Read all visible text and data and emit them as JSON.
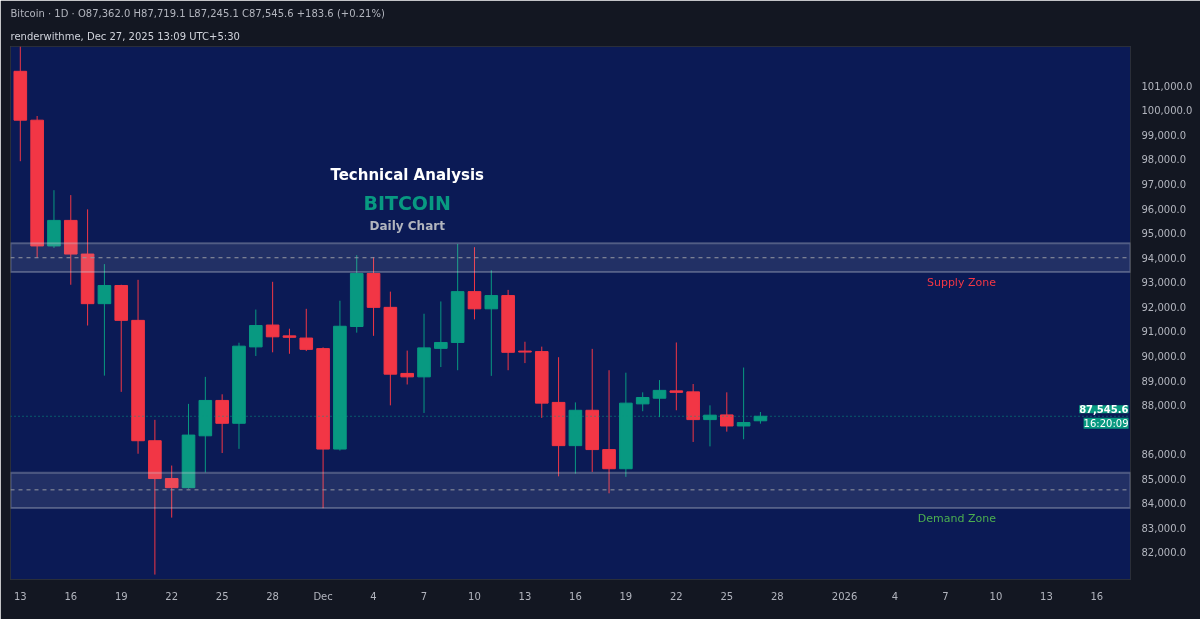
{
  "chart_data": {
    "type": "candlestick",
    "title": "Technical Analysis",
    "subtitle": "BITCOIN",
    "annotations": [
      "renderwithme, Dec 27, 2025 13:09 UTC+5:30",
      "Bitcoin · 1D · O87,362.0 H87,719.1 L87,245.1 C87,545.6 +183.6 (+0.21%)",
      "Daily Chart",
      "16:20:09"
    ],
    "x": [
      "2025-11-13",
      "2025-11-14",
      "2025-11-15",
      "2025-11-16",
      "2025-11-17",
      "2025-11-18",
      "2025-11-19",
      "2025-11-20",
      "2025-11-21",
      "2025-11-22",
      "2025-11-23",
      "2025-11-24",
      "2025-11-25",
      "2025-11-26",
      "2025-11-27",
      "2025-11-28",
      "2025-11-29",
      "2025-11-30",
      "2025-12-01",
      "2025-12-02",
      "2025-12-03",
      "2025-12-04",
      "2025-12-05",
      "2025-12-06",
      "2025-12-07",
      "2025-12-08",
      "2025-12-09",
      "2025-12-10",
      "2025-12-11",
      "2025-12-12",
      "2025-12-13",
      "2025-12-14",
      "2025-12-15",
      "2025-12-16",
      "2025-12-17",
      "2025-12-18",
      "2025-12-19",
      "2025-12-20",
      "2025-12-21",
      "2025-12-22",
      "2025-12-23",
      "2025-12-24",
      "2025-12-25",
      "2025-12-26",
      "2025-12-27"
    ],
    "ohlc": [
      [
        101590,
        102600,
        97930,
        99600
      ],
      [
        99600,
        99770,
        94000,
        94480
      ],
      [
        94480,
        96750,
        94400,
        95520
      ],
      [
        95520,
        96550,
        92900,
        94150
      ],
      [
        94150,
        95970,
        91240,
        92130
      ],
      [
        92130,
        93740,
        89200,
        92870
      ],
      [
        92870,
        92900,
        88540,
        91450
      ],
      [
        91450,
        93100,
        86020,
        86550
      ],
      [
        86550,
        87400,
        81100,
        85010
      ],
      [
        85010,
        85540,
        83420,
        84640
      ],
      [
        84640,
        88050,
        84600,
        86780
      ],
      [
        86750,
        89150,
        85260,
        88190
      ],
      [
        88190,
        88440,
        86050,
        87260
      ],
      [
        87260,
        90540,
        86220,
        90400
      ],
      [
        90370,
        91890,
        90000,
        91240
      ],
      [
        91260,
        93020,
        90150,
        90780
      ],
      [
        90820,
        91110,
        90090,
        90760
      ],
      [
        90730,
        91920,
        90200,
        90270
      ],
      [
        90300,
        90350,
        83800,
        86210
      ],
      [
        86210,
        92250,
        86150,
        91210
      ],
      [
        91200,
        94100,
        90950,
        93360
      ],
      [
        93360,
        94030,
        90820,
        91980
      ],
      [
        91980,
        92620,
        87990,
        89260
      ],
      [
        89290,
        90220,
        88840,
        89150
      ],
      [
        89150,
        91720,
        87680,
        90330
      ],
      [
        90310,
        92220,
        89550,
        90550
      ],
      [
        90550,
        94560,
        89420,
        92620
      ],
      [
        92620,
        94430,
        91490,
        91920
      ],
      [
        91920,
        93490,
        89190,
        92460
      ],
      [
        92460,
        92690,
        89420,
        90150
      ],
      [
        90200,
        90580,
        89710,
        90160
      ],
      [
        90180,
        90380,
        87480,
        88080
      ],
      [
        88110,
        89950,
        85100,
        86350
      ],
      [
        86350,
        88110,
        85210,
        87790
      ],
      [
        87790,
        90290,
        85280,
        86190
      ],
      [
        86190,
        89420,
        84410,
        85410
      ],
      [
        85410,
        89320,
        85080,
        88080
      ],
      [
        88050,
        88520,
        87750,
        88310
      ],
      [
        88280,
        89020,
        87510,
        88600
      ],
      [
        88580,
        90550,
        87790,
        88520
      ],
      [
        88540,
        88860,
        86500,
        87410
      ],
      [
        87410,
        87990,
        86320,
        87590
      ],
      [
        87600,
        88520,
        86920,
        87150
      ],
      [
        87150,
        89530,
        86610,
        87290
      ],
      [
        87362,
        87719,
        87245,
        87545.6
      ]
    ],
    "colors": [
      "#f23645",
      "#f23645",
      "#089981",
      "#f23645",
      "#f23645",
      "#089981",
      "#f23645",
      "#f23645",
      "#f23645",
      "#f23645",
      "#089981",
      "#089981",
      "#f23645",
      "#089981",
      "#089981",
      "#f23645",
      "#f23645",
      "#f23645",
      "#f23645",
      "#089981",
      "#089981",
      "#f23645",
      "#f23645",
      "#f23645",
      "#089981",
      "#089981",
      "#089981",
      "#f23645",
      "#089981",
      "#f23645",
      "#f23645",
      "#f23645",
      "#f23645",
      "#089981",
      "#f23645",
      "#f23645",
      "#089981",
      "#089981",
      "#089981",
      "#f23645",
      "#f23645",
      "#089981",
      "#f23645",
      "#089981",
      "#089981"
    ],
    "xlim": [
      "2025-11-12T10:00",
      "2026-01-18T00:00"
    ],
    "xticks": [
      {
        "value": "2025-11-13",
        "label": "13"
      },
      {
        "value": "2025-11-16",
        "label": "16"
      },
      {
        "value": "2025-11-19",
        "label": "19"
      },
      {
        "value": "2025-11-22",
        "label": "22"
      },
      {
        "value": "2025-11-25",
        "label": "25"
      },
      {
        "value": "2025-11-28",
        "label": "28"
      },
      {
        "value": "2025-12-01",
        "label": "Dec"
      },
      {
        "value": "2025-12-04",
        "label": "4"
      },
      {
        "value": "2025-12-07",
        "label": "7"
      },
      {
        "value": "2025-12-10",
        "label": "10"
      },
      {
        "value": "2025-12-13",
        "label": "13"
      },
      {
        "value": "2025-12-16",
        "label": "16"
      },
      {
        "value": "2025-12-19",
        "label": "19"
      },
      {
        "value": "2025-12-22",
        "label": "22"
      },
      {
        "value": "2025-12-25",
        "label": "25"
      },
      {
        "value": "2025-12-28",
        "label": "28"
      },
      {
        "value": "2026-01-01",
        "label": "2026"
      },
      {
        "value": "2026-01-04",
        "label": "4"
      },
      {
        "value": "2026-01-07",
        "label": "7"
      },
      {
        "value": "2026-01-10",
        "label": "10"
      },
      {
        "value": "2026-01-13",
        "label": "13"
      },
      {
        "value": "2026-01-16",
        "label": "16"
      }
    ],
    "ylim": [
      80900,
      102600
    ],
    "yticks": [
      {
        "value": 82000,
        "label": "82,000.0"
      },
      {
        "value": 83000,
        "label": "83,000.0"
      },
      {
        "value": 84000,
        "label": "84,000.0"
      },
      {
        "value": 85000,
        "label": "85,000.0"
      },
      {
        "value": 86000,
        "label": "86,000.0"
      },
      {
        "value": 88000,
        "label": "88,000.0"
      },
      {
        "value": 89000,
        "label": "89,000.0"
      },
      {
        "value": 90000,
        "label": "90,000.0"
      },
      {
        "value": 91000,
        "label": "91,000.0"
      },
      {
        "value": 92000,
        "label": "92,000.0"
      },
      {
        "value": 93000,
        "label": "93,000.0"
      },
      {
        "value": 94000,
        "label": "94,000.0"
      },
      {
        "value": 95000,
        "label": "95,000.0"
      },
      {
        "value": 96000,
        "label": "96,000.0"
      },
      {
        "value": 97000,
        "label": "97,000.0"
      },
      {
        "value": 98000,
        "label": "98,000.0"
      },
      {
        "value": 99000,
        "label": "99,000.0"
      },
      {
        "value": 100000,
        "label": "100,000.0"
      },
      {
        "value": 101000,
        "label": "101,000.0"
      }
    ],
    "bands": [
      {
        "axis": "y",
        "from": 93420,
        "to": 94590,
        "label": "Supply Zone",
        "color": "#d1d4dc"
      },
      {
        "axis": "y",
        "from": 83810,
        "to": 85250,
        "label": "Demand Zone",
        "color": "#d1d4dc"
      }
    ],
    "ref_lines": [
      {
        "axis": "y",
        "value": 94000,
        "line_style": "dashed",
        "color": "#9598a1"
      },
      {
        "axis": "y",
        "value": 84550,
        "line_style": "dashed",
        "color": "#9598a1"
      },
      {
        "axis": "y",
        "value": 87545.6,
        "label": "87,545.6",
        "line_style": "dotted",
        "color": "#089981"
      }
    ],
    "grid": false
  }
}
